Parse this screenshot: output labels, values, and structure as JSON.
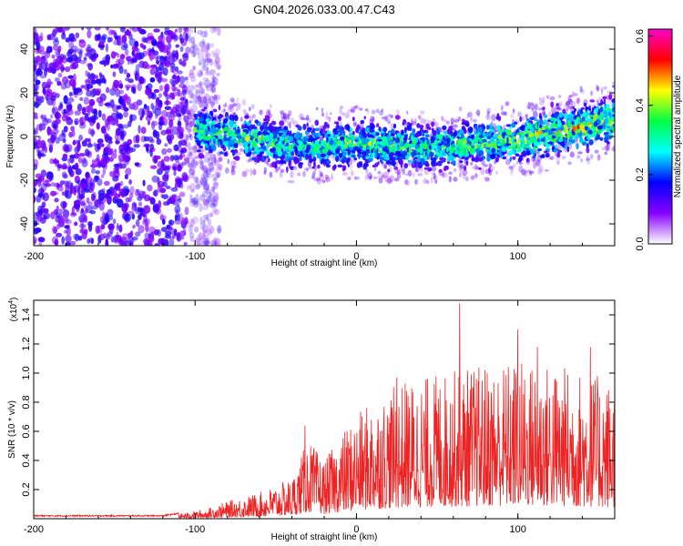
{
  "figure_title": "GN04.2026.033.00.47.C43",
  "colors": {
    "background": "#ffffff",
    "snr_line": "#ee2222",
    "axis": "#000000"
  },
  "chart_data": [
    {
      "type": "heatmap",
      "name": "spectrogram",
      "xlabel": "Height of straight line (km)",
      "ylabel": "Frequency (Hz)",
      "xlim": [
        -200,
        160
      ],
      "ylim": [
        -50,
        50
      ],
      "x_ticks": [
        -200,
        -100,
        0,
        100
      ],
      "y_ticks": [
        -40,
        -20,
        0,
        20,
        40
      ],
      "colorbar": {
        "label": "Normalized spectral amplitude",
        "range": [
          0.0,
          0.62
        ],
        "ticks": [
          "0.0",
          "0.2",
          "0.4",
          "0.6"
        ],
        "colormap": [
          "#ffffff",
          "#8800ff",
          "#0000ff",
          "#00ffff",
          "#00ff44",
          "#ffff00",
          "#ff0000",
          "#ff00cc"
        ]
      },
      "noise_region_km": [
        -200,
        -100
      ],
      "trend": [
        {
          "x": -100,
          "freq": 3,
          "amp": 0.3
        },
        {
          "x": -60,
          "freq": -2,
          "amp": 0.3
        },
        {
          "x": -40,
          "freq": -5,
          "amp": 0.28
        },
        {
          "x": 0,
          "freq": -3,
          "amp": 0.32
        },
        {
          "x": 40,
          "freq": -5,
          "amp": 0.3
        },
        {
          "x": 80,
          "freq": -3,
          "amp": 0.32
        },
        {
          "x": 110,
          "freq": 0,
          "amp": 0.36
        },
        {
          "x": 140,
          "freq": 5,
          "amp": 0.38
        },
        {
          "x": 160,
          "freq": 8,
          "amp": 0.36
        }
      ]
    },
    {
      "type": "line",
      "name": "snr",
      "xlabel": "Height of straight line (km)",
      "ylabel": "SNR (10 * v/v)",
      "y_scale_label": "(x10",
      "y_scale_exponent": "4",
      "xlim": [
        -200,
        160
      ],
      "ylim": [
        0,
        1.5
      ],
      "x_ticks": [
        -200,
        -100,
        0,
        100
      ],
      "y_ticks": [
        "0.2",
        "0.4",
        "0.6",
        "0.8",
        "1.0",
        "1.2",
        "1.4"
      ],
      "envelope": [
        {
          "x": -200,
          "y": 0.02
        },
        {
          "x": -120,
          "y": 0.02
        },
        {
          "x": -95,
          "y": 0.06
        },
        {
          "x": -80,
          "y": 0.12
        },
        {
          "x": -60,
          "y": 0.18
        },
        {
          "x": -40,
          "y": 0.28
        },
        {
          "x": -30,
          "y": 0.55
        },
        {
          "x": -20,
          "y": 0.4
        },
        {
          "x": -5,
          "y": 0.65
        },
        {
          "x": 10,
          "y": 0.82
        },
        {
          "x": 30,
          "y": 0.95
        },
        {
          "x": 50,
          "y": 1.0
        },
        {
          "x": 70,
          "y": 1.05
        },
        {
          "x": 100,
          "y": 1.1
        },
        {
          "x": 130,
          "y": 1.05
        },
        {
          "x": 160,
          "y": 0.95
        }
      ],
      "peaks": [
        {
          "x": -32,
          "y": 0.64
        },
        {
          "x": 25,
          "y": 0.97
        },
        {
          "x": 64,
          "y": 1.48
        },
        {
          "x": 100,
          "y": 1.3
        },
        {
          "x": 112,
          "y": 1.18
        },
        {
          "x": 145,
          "y": 1.18
        }
      ]
    }
  ]
}
